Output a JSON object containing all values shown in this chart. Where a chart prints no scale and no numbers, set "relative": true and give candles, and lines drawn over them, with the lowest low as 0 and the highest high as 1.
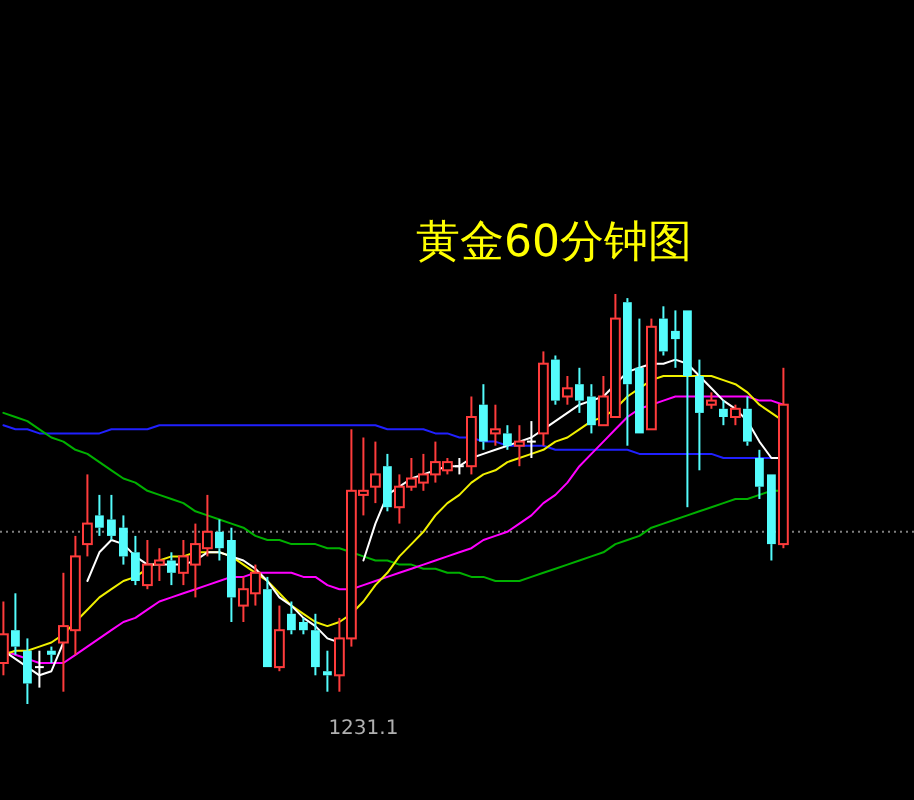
{
  "chart_data": {
    "type": "candlestick",
    "title": "黄金60分钟图",
    "relative": true,
    "categories": [
      null,
      null,
      null,
      null,
      null,
      null,
      null,
      null,
      null,
      null,
      null,
      null,
      null,
      null,
      null,
      null,
      null,
      null,
      null,
      null,
      null,
      null,
      null,
      null,
      null,
      null,
      null,
      null,
      null,
      null,
      "1231.1",
      null,
      null,
      null,
      null,
      null,
      null,
      null,
      null,
      null,
      null,
      null,
      null,
      null,
      null,
      null,
      null,
      null,
      null,
      null,
      null,
      null,
      null,
      null,
      null,
      null,
      null,
      null,
      null,
      null,
      null,
      null,
      null,
      null,
      null,
      null
    ],
    "ohlc": [
      [
        0.1,
        0.25,
        0.07,
        0.17
      ],
      [
        0.18,
        0.27,
        0.12,
        0.14
      ],
      [
        0.13,
        0.16,
        0,
        0.05
      ],
      [
        0.09,
        0.13,
        0.04,
        0.09
      ],
      [
        0.13,
        0.14,
        0.1,
        0.12
      ],
      [
        0.15,
        0.32,
        0.03,
        0.19
      ],
      [
        0.18,
        0.41,
        0.12,
        0.36
      ],
      [
        0.39,
        0.56,
        0.36,
        0.44
      ],
      [
        0.46,
        0.51,
        0.41,
        0.43
      ],
      [
        0.45,
        0.51,
        0.4,
        0.41
      ],
      [
        0.43,
        0.46,
        0.34,
        0.36
      ],
      [
        0.37,
        0.41,
        0.29,
        0.3
      ],
      [
        0.29,
        0.4,
        0.28,
        0.34
      ],
      [
        0.34,
        0.38,
        0.3,
        0.35
      ],
      [
        0.35,
        0.37,
        0.29,
        0.32
      ],
      [
        0.32,
        0.4,
        0.29,
        0.36
      ],
      [
        0.34,
        0.44,
        0.26,
        0.39
      ],
      [
        0.38,
        0.51,
        0.36,
        0.42
      ],
      [
        0.42,
        0.45,
        0.35,
        0.38
      ],
      [
        0.4,
        0.43,
        0.2,
        0.26
      ],
      [
        0.24,
        0.31,
        0.2,
        0.28
      ],
      [
        0.27,
        0.34,
        0.24,
        0.32
      ],
      [
        0.28,
        0.31,
        0.09,
        0.09
      ],
      [
        0.09,
        0.24,
        0.08,
        0.18
      ],
      [
        0.22,
        0.25,
        0.17,
        0.18
      ],
      [
        0.2,
        0.21,
        0.17,
        0.18
      ],
      [
        0.18,
        0.22,
        0.07,
        0.09
      ],
      [
        0.08,
        0.13,
        0.03,
        0.07
      ],
      [
        0.07,
        0.21,
        0.03,
        0.16
      ],
      [
        0.16,
        0.67,
        0.14,
        0.52
      ],
      [
        0.51,
        0.65,
        0.46,
        0.52
      ],
      [
        0.53,
        0.64,
        0.49,
        0.56
      ],
      [
        0.58,
        0.61,
        0.47,
        0.48
      ],
      [
        0.48,
        0.56,
        0.44,
        0.53
      ],
      [
        0.53,
        0.6,
        0.52,
        0.55
      ],
      [
        0.54,
        0.61,
        0.52,
        0.56
      ],
      [
        0.56,
        0.64,
        0.54,
        0.59
      ],
      [
        0.57,
        0.6,
        0.56,
        0.59
      ],
      [
        0.58,
        0.6,
        0.56,
        0.58
      ],
      [
        0.58,
        0.75,
        0.56,
        0.7
      ],
      [
        0.73,
        0.78,
        0.62,
        0.64
      ],
      [
        0.66,
        0.73,
        0.63,
        0.67
      ],
      [
        0.66,
        0.68,
        0.62,
        0.63
      ],
      [
        0.63,
        0.68,
        0.58,
        0.64
      ],
      [
        0.64,
        0.69,
        0.6,
        0.64
      ],
      [
        0.66,
        0.86,
        0.63,
        0.83
      ],
      [
        0.84,
        0.85,
        0.73,
        0.74
      ],
      [
        0.75,
        0.8,
        0.73,
        0.77
      ],
      [
        0.78,
        0.82,
        0.71,
        0.74
      ],
      [
        0.75,
        0.78,
        0.66,
        0.68
      ],
      [
        0.68,
        0.8,
        0.68,
        0.75
      ],
      [
        0.7,
        1,
        0.7,
        0.94
      ],
      [
        0.98,
        0.99,
        0.63,
        0.78
      ],
      [
        0.82,
        0.94,
        0.66,
        0.66
      ],
      [
        0.67,
        0.94,
        0.67,
        0.92
      ],
      [
        0.94,
        0.97,
        0.85,
        0.86
      ],
      [
        0.91,
        0.96,
        0.82,
        0.89
      ],
      [
        0.96,
        0.96,
        0.48,
        0.8
      ],
      [
        0.8,
        0.84,
        0.57,
        0.71
      ],
      [
        0.73,
        0.76,
        0.72,
        0.74
      ],
      [
        0.72,
        0.74,
        0.68,
        0.7
      ],
      [
        0.7,
        0.73,
        0.68,
        0.72
      ],
      [
        0.72,
        0.75,
        0.63,
        0.64
      ],
      [
        0.6,
        0.62,
        0.5,
        0.53
      ],
      [
        0.56,
        0.56,
        0.35,
        0.39
      ],
      [
        0.39,
        0.82,
        0.38,
        0.73
      ]
    ],
    "colors": [
      "#ff3c3c",
      "#54fcfc",
      "#54fcfc",
      "#ffffff",
      "#54fcfc",
      "#ff3c3c",
      "#ff3c3c",
      "#ff3c3c",
      "#54fcfc",
      "#54fcfc",
      "#54fcfc",
      "#54fcfc",
      "#ff3c3c",
      "#ff3c3c",
      "#54fcfc",
      "#ff3c3c",
      "#ff3c3c",
      "#ff3c3c",
      "#54fcfc",
      "#54fcfc",
      "#ff3c3c",
      "#ff3c3c",
      "#54fcfc",
      "#ff3c3c",
      "#54fcfc",
      "#54fcfc",
      "#54fcfc",
      "#54fcfc",
      "#ff3c3c",
      "#ff3c3c",
      "#ff3c3c",
      "#ff3c3c",
      "#54fcfc",
      "#ff3c3c",
      "#ff3c3c",
      "#ff3c3c",
      "#ff3c3c",
      "#ff3c3c",
      "#ffffff",
      "#ff3c3c",
      "#54fcfc",
      "#ff3c3c",
      "#54fcfc",
      "#ff3c3c",
      "#ffffff",
      "#ff3c3c",
      "#54fcfc",
      "#ff3c3c",
      "#54fcfc",
      "#54fcfc",
      "#ff3c3c",
      "#ff3c3c",
      "#54fcfc",
      "#54fcfc",
      "#ff3c3c",
      "#54fcfc",
      "#54fcfc",
      "#54fcfc",
      "#54fcfc",
      "#ff3c3c",
      "#54fcfc",
      "#ff3c3c",
      "#54fcfc",
      "#54fcfc",
      "#54fcfc",
      "#ff3c3c"
    ],
    "series": [
      {
        "type": "line",
        "color": "#2020ff",
        "values": [
          0.68,
          0.67,
          0.67,
          0.66,
          0.66,
          0.66,
          0.66,
          0.66,
          0.66,
          0.67,
          0.67,
          0.67,
          0.67,
          0.68,
          0.68,
          0.68,
          0.68,
          0.68,
          0.68,
          0.68,
          0.68,
          0.68,
          0.68,
          0.68,
          0.68,
          0.68,
          0.68,
          0.68,
          0.68,
          0.68,
          0.68,
          0.68,
          0.67,
          0.67,
          0.67,
          0.67,
          0.66,
          0.66,
          0.65,
          0.65,
          0.64,
          0.64,
          0.63,
          0.63,
          0.63,
          0.63,
          0.62,
          0.62,
          0.62,
          0.62,
          0.62,
          0.62,
          0.62,
          0.61,
          0.61,
          0.61,
          0.61,
          0.61,
          0.61,
          0.61,
          0.6,
          0.6,
          0.6,
          0.6,
          0.6,
          null
        ]
      },
      {
        "type": "line",
        "color": "#00b000",
        "values": [
          0.71,
          0.7,
          0.69,
          0.67,
          0.65,
          0.64,
          0.62,
          0.61,
          0.59,
          0.57,
          0.55,
          0.54,
          0.52,
          0.51,
          0.5,
          0.49,
          0.47,
          0.46,
          0.45,
          0.44,
          0.43,
          0.41,
          0.4,
          0.4,
          0.39,
          0.39,
          0.39,
          0.38,
          0.38,
          0.37,
          0.36,
          0.35,
          0.35,
          0.34,
          0.34,
          0.33,
          0.33,
          0.32,
          0.32,
          0.31,
          0.31,
          0.3,
          0.3,
          0.3,
          0.31,
          0.32,
          0.33,
          0.34,
          0.35,
          0.36,
          0.37,
          0.39,
          0.4,
          0.41,
          0.43,
          0.44,
          0.45,
          0.46,
          0.47,
          0.48,
          0.49,
          0.5,
          0.5,
          0.51,
          0.52,
          0.52
        ]
      },
      {
        "type": "line",
        "color": "#ff00ff",
        "values": [
          0.13,
          0.12,
          0.11,
          0.1,
          0.1,
          0.1,
          0.12,
          0.14,
          0.16,
          0.18,
          0.2,
          0.21,
          0.23,
          0.25,
          0.26,
          0.27,
          0.28,
          0.29,
          0.3,
          0.31,
          0.31,
          0.32,
          0.32,
          0.32,
          0.32,
          0.31,
          0.31,
          0.29,
          0.28,
          0.28,
          0.29,
          0.3,
          0.31,
          0.32,
          0.33,
          0.34,
          0.35,
          0.36,
          0.37,
          0.38,
          0.4,
          0.41,
          0.42,
          0.44,
          0.46,
          0.49,
          0.51,
          0.54,
          0.58,
          0.61,
          0.64,
          0.67,
          0.7,
          0.72,
          0.73,
          0.74,
          0.75,
          0.75,
          0.75,
          0.75,
          0.75,
          0.75,
          0.75,
          0.74,
          0.74,
          0.73
        ]
      },
      {
        "type": "line",
        "color": "#f0f000",
        "values": [
          0.12,
          0.13,
          0.13,
          0.14,
          0.15,
          0.17,
          0.2,
          0.23,
          0.26,
          0.28,
          0.3,
          0.31,
          0.33,
          0.35,
          0.36,
          0.36,
          0.37,
          0.37,
          0.37,
          0.36,
          0.34,
          0.32,
          0.3,
          0.27,
          0.24,
          0.22,
          0.2,
          0.19,
          0.2,
          0.22,
          0.25,
          0.29,
          0.32,
          0.36,
          0.39,
          0.42,
          0.46,
          0.49,
          0.51,
          0.54,
          0.56,
          0.57,
          0.59,
          0.6,
          0.61,
          0.62,
          0.64,
          0.65,
          0.67,
          0.69,
          0.7,
          0.72,
          0.75,
          0.77,
          0.79,
          0.8,
          0.8,
          0.8,
          0.8,
          0.8,
          0.79,
          0.78,
          0.76,
          0.73,
          0.71,
          0.69
        ]
      },
      {
        "type": "line",
        "color": "#ffffff",
        "values": [
          0.13,
          0.11,
          0.09,
          0.07,
          0.08,
          0.15,
          null,
          0.3,
          0.37,
          0.4,
          0.39,
          0.36,
          0.34,
          0.34,
          0.34,
          0.34,
          0.35,
          0.37,
          0.37,
          0.36,
          0.35,
          0.33,
          0.3,
          0.26,
          0.24,
          0.21,
          0.19,
          0.16,
          0.15,
          null,
          0.35,
          0.44,
          0.51,
          0.53,
          0.55,
          0.56,
          0.57,
          0.58,
          0.58,
          0.6,
          0.61,
          0.62,
          0.63,
          0.64,
          0.65,
          0.67,
          0.69,
          0.71,
          0.73,
          0.74,
          0.75,
          0.78,
          0.81,
          0.82,
          0.83,
          0.83,
          0.84,
          0.83,
          0.8,
          0.77,
          0.74,
          0.72,
          0.69,
          0.64,
          0.6,
          0.6
        ]
      }
    ],
    "ref_lines": [
      {
        "axis": "y",
        "value": 0.42,
        "color": "#808080",
        "line_style": "dotted"
      }
    ]
  }
}
